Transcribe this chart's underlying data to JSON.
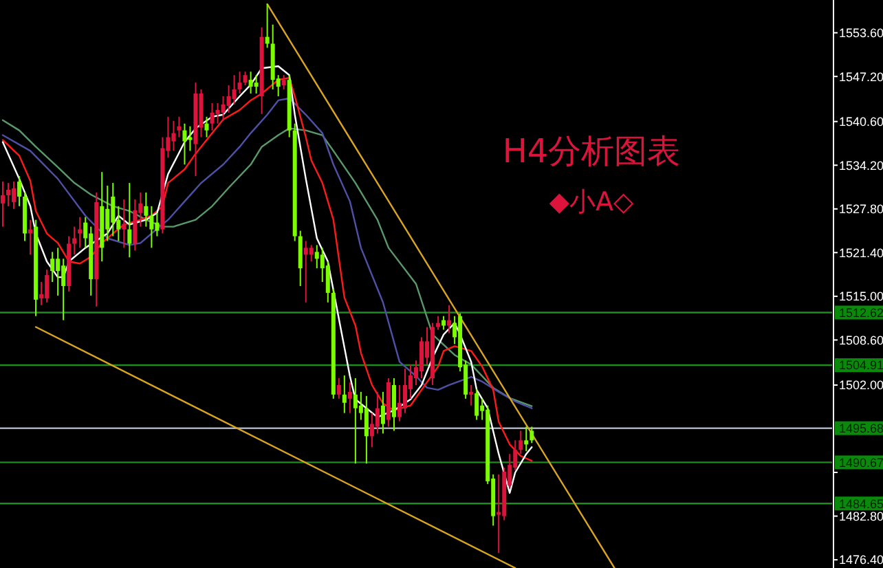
{
  "chart_data": {
    "type": "candlestick",
    "annotations": [
      "H4分析图表",
      "◆小A◇"
    ],
    "tick_labels": "y",
    "ylim": [
      1475.2,
      1558.4
    ],
    "yticks": [
      {
        "value": 1553.6,
        "label": "1553.60"
      },
      {
        "value": 1547.2,
        "label": "1547.20"
      },
      {
        "value": 1540.6,
        "label": "1540.60"
      },
      {
        "value": 1534.2,
        "label": "1534.20"
      },
      {
        "value": 1527.8,
        "label": "1527.80"
      },
      {
        "value": 1521.4,
        "label": "1521.40"
      },
      {
        "value": 1515.0,
        "label": "1515.00"
      },
      {
        "value": 1508.6,
        "label": "1508.60"
      },
      {
        "value": 1502.0,
        "label": "1502.00"
      },
      {
        "value": 1489.2,
        "label": null
      },
      {
        "value": 1482.8,
        "label": "1482.80"
      },
      {
        "value": 1476.4,
        "label": "1476.40"
      }
    ],
    "categories": [
      null,
      null,
      null,
      null,
      null,
      null,
      null,
      null,
      null,
      null,
      null,
      null,
      null,
      null,
      null,
      null,
      null,
      null,
      null,
      null,
      null,
      null,
      null,
      null,
      null,
      null,
      null,
      null,
      null,
      null,
      null,
      null,
      null,
      null,
      null,
      null,
      null,
      null,
      null,
      null,
      null,
      null,
      null,
      null,
      null,
      null,
      null,
      null,
      null,
      null,
      null,
      null,
      null,
      null,
      null,
      null,
      null,
      null,
      null,
      null,
      null,
      null,
      null,
      null,
      null,
      null,
      null,
      null,
      null,
      null,
      null,
      null,
      null,
      null,
      null,
      null,
      null,
      null,
      null,
      null,
      null,
      null,
      null,
      null,
      null,
      null,
      null,
      null,
      null,
      null,
      null,
      null,
      null,
      null,
      null,
      null,
      null,
      null,
      null,
      null,
      null,
      null,
      null,
      null,
      null,
      null,
      null,
      null,
      null,
      null,
      null,
      null,
      null,
      null,
      null,
      null,
      null,
      null,
      null,
      null,
      null,
      null,
      null,
      null,
      null,
      null,
      null,
      null,
      null,
      null,
      null,
      null,
      null,
      null,
      null,
      null,
      null,
      null,
      null,
      null,
      null,
      null,
      null,
      null,
      null,
      null,
      null,
      null,
      null,
      null,
      null
    ],
    "ohlc": [
      [
        1528.6,
        1531.8,
        1525.2,
        1529.8
      ],
      [
        1529.8,
        1531.6,
        1528.2,
        1530.6
      ],
      [
        1528.8,
        1531.8,
        1527.8,
        1530.8
      ],
      [
        1531.8,
        1532.6,
        1528.2,
        1529.6
      ],
      [
        1529.6,
        1530.2,
        1523.1,
        1524.2
      ],
      [
        1524.2,
        1526.2,
        1521.1,
        1524.8
      ],
      [
        1525.2,
        1526.2,
        1512.1,
        1514.5
      ],
      [
        1514.7,
        1517.1,
        1513.7,
        1515.3
      ],
      [
        1514.7,
        1518.9,
        1514.1,
        1518.1
      ],
      [
        1520.5,
        1521.5,
        1517.1,
        1518.7
      ],
      [
        1520.5,
        1522.1,
        1515.1,
        1518.7
      ],
      [
        1519.5,
        1520.5,
        1511.5,
        1516.5
      ],
      [
        1516.5,
        1523.8,
        1515.7,
        1522.7
      ],
      [
        1522.7,
        1525.2,
        1521.1,
        1523.5
      ],
      [
        1524.2,
        1526.6,
        1522.1,
        1524.8
      ],
      [
        1525.8,
        1526.6,
        1522.1,
        1523.5
      ],
      [
        1524.2,
        1525.2,
        1515.1,
        1517.5
      ],
      [
        1517.5,
        1530.2,
        1513.5,
        1528.8
      ],
      [
        1528.2,
        1533.2,
        1520.1,
        1522.1
      ],
      [
        1527.8,
        1531.2,
        1523.1,
        1524.8
      ],
      [
        1529.6,
        1531.6,
        1523.8,
        1525.8
      ],
      [
        1526.2,
        1528.2,
        1523.1,
        1524.8
      ],
      [
        1524.8,
        1529.2,
        1522.1,
        1525.6
      ],
      [
        1524.8,
        1531.6,
        1520.7,
        1522.7
      ],
      [
        1522.7,
        1529.2,
        1521.7,
        1527.6
      ],
      [
        1527.2,
        1530.2,
        1525.2,
        1528.6
      ],
      [
        1528.2,
        1530.2,
        1525.2,
        1526.8
      ],
      [
        1526.8,
        1528.2,
        1522.1,
        1524.8
      ],
      [
        1525.8,
        1527.2,
        1523.8,
        1524.6
      ],
      [
        1524.8,
        1538.3,
        1524.2,
        1536.7
      ],
      [
        1536.3,
        1541.3,
        1535.3,
        1538.3
      ],
      [
        1537.7,
        1540.7,
        1536.3,
        1538.9
      ],
      [
        1539.3,
        1541.3,
        1538.3,
        1539.9
      ],
      [
        1539.3,
        1540.3,
        1534.3,
        1537.7
      ],
      [
        1538.3,
        1539.9,
        1536.3,
        1537.9
      ],
      [
        1537.3,
        1546.3,
        1532.6,
        1544.7
      ],
      [
        1539.7,
        1545.3,
        1538.3,
        1544.7
      ],
      [
        1540.3,
        1541.3,
        1538.3,
        1539.3
      ],
      [
        1540.3,
        1543.3,
        1539.3,
        1541.9
      ],
      [
        1541.7,
        1543.3,
        1540.3,
        1542.3
      ],
      [
        1541.9,
        1544.3,
        1540.7,
        1543.1
      ],
      [
        1542.9,
        1545.9,
        1541.9,
        1544.3
      ],
      [
        1543.9,
        1547.4,
        1543.1,
        1545.3
      ],
      [
        1545.3,
        1547.9,
        1544.7,
        1546.3
      ],
      [
        1546.3,
        1547.9,
        1545.9,
        1547.4
      ],
      [
        1546.7,
        1547.9,
        1544.7,
        1545.7
      ],
      [
        1546.3,
        1547.4,
        1544.7,
        1545.7
      ],
      [
        1544.3,
        1554.4,
        1541.7,
        1553.0
      ],
      [
        1553.0,
        1557.8,
        1551.4,
        1552.0
      ],
      [
        1552.0,
        1554.8,
        1545.3,
        1546.7
      ],
      [
        1546.9,
        1547.4,
        1544.3,
        1545.7
      ],
      [
        1545.9,
        1547.4,
        1545.3,
        1546.7
      ],
      [
        1546.7,
        1547.4,
        1538.3,
        1539.3
      ],
      [
        1539.3,
        1540.3,
        1523.1,
        1523.8
      ],
      [
        1523.8,
        1524.6,
        1516.5,
        1519.1
      ],
      [
        1521.1,
        1523.1,
        1514.1,
        1522.1
      ],
      [
        1521.1,
        1522.5,
        1520.1,
        1522.1
      ],
      [
        1521.5,
        1522.5,
        1519.1,
        1520.5
      ],
      [
        1521.1,
        1522.1,
        1517.1,
        1519.1
      ],
      [
        1519.5,
        1520.1,
        1514.1,
        1515.5
      ],
      [
        1515.5,
        1516.1,
        1500.0,
        1500.6
      ],
      [
        1500.6,
        1503.0,
        1500.0,
        1502.0
      ],
      [
        1500.6,
        1503.4,
        1497.9,
        1499.4
      ],
      [
        1500.0,
        1502.4,
        1497.9,
        1501.0
      ],
      [
        1500.6,
        1503.0,
        1490.5,
        1498.6
      ],
      [
        1499.0,
        1501.0,
        1496.9,
        1497.9
      ],
      [
        1498.6,
        1500.4,
        1490.5,
        1494.5
      ],
      [
        1494.5,
        1497.9,
        1492.9,
        1496.3
      ],
      [
        1495.9,
        1501.0,
        1494.9,
        1498.6
      ],
      [
        1499.0,
        1501.0,
        1494.9,
        1496.3
      ],
      [
        1496.9,
        1503.0,
        1495.9,
        1502.4
      ],
      [
        1502.0,
        1503.0,
        1495.3,
        1497.3
      ],
      [
        1497.3,
        1502.0,
        1496.7,
        1499.4
      ],
      [
        1498.6,
        1504.4,
        1497.9,
        1502.0
      ],
      [
        1501.4,
        1505.0,
        1500.0,
        1503.4
      ],
      [
        1503.0,
        1505.6,
        1502.0,
        1504.6
      ],
      [
        1504.0,
        1509.0,
        1503.0,
        1508.4
      ],
      [
        1506.0,
        1510.5,
        1505.0,
        1508.4
      ],
      [
        1503.0,
        1511.1,
        1502.0,
        1510.5
      ],
      [
        1510.5,
        1512.1,
        1510.1,
        1511.1
      ],
      [
        1511.5,
        1512.1,
        1510.1,
        1510.7
      ],
      [
        1510.7,
        1513.7,
        1509.6,
        1511.5
      ],
      [
        1511.1,
        1512.1,
        1508.0,
        1509.0
      ],
      [
        1512.1,
        1512.5,
        1504.0,
        1504.6
      ],
      [
        1505.0,
        1505.6,
        1500.0,
        1500.6
      ],
      [
        1500.6,
        1502.0,
        1499.0,
        1501.0
      ],
      [
        1500.8,
        1501.4,
        1496.9,
        1497.5
      ],
      [
        1499.0,
        1500.0,
        1496.9,
        1498.2
      ],
      [
        1498.4,
        1499.0,
        1487.5,
        1487.9
      ],
      [
        1488.3,
        1488.9,
        1481.4,
        1482.8
      ],
      [
        1483.0,
        1488.9,
        1477.4,
        1483.4
      ],
      [
        1482.8,
        1489.9,
        1482.2,
        1489.3
      ],
      [
        1487.3,
        1491.9,
        1486.9,
        1490.3
      ],
      [
        1489.9,
        1493.9,
        1489.5,
        1492.5
      ],
      [
        1492.5,
        1495.3,
        1491.9,
        1493.9
      ],
      [
        1493.9,
        1495.9,
        1492.3,
        1493.3
      ],
      [
        1495.3,
        1495.9,
        1493.5,
        1493.9
      ],
      null,
      null,
      null,
      null,
      null,
      null,
      null,
      null,
      null,
      null,
      null,
      null,
      null,
      null,
      null,
      null,
      null,
      null,
      null,
      null,
      null,
      null,
      null,
      null,
      null,
      null,
      null,
      null,
      null,
      null,
      null,
      null,
      null,
      null,
      null,
      null,
      null,
      null,
      null,
      null,
      null,
      null,
      null,
      null,
      null,
      null,
      null,
      null,
      null,
      null,
      null,
      null,
      null,
      null
    ],
    "colors": [
      "#dc143c",
      "#dc143c",
      "#dc143c",
      "#7cfc00",
      "#7cfc00",
      "#dc143c",
      "#7cfc00",
      "#dc143c",
      "#dc143c",
      "#7cfc00",
      "#7cfc00",
      "#7cfc00",
      "#dc143c",
      "#dc143c",
      "#dc143c",
      "#7cfc00",
      "#7cfc00",
      "#dc143c",
      "#7cfc00",
      "#7cfc00",
      "#7cfc00",
      "#7cfc00",
      "#dc143c",
      "#7cfc00",
      "#dc143c",
      "#dc143c",
      "#7cfc00",
      "#7cfc00",
      "#7cfc00",
      "#dc143c",
      "#dc143c",
      "#dc143c",
      "#dc143c",
      "#7cfc00",
      "#7cfc00",
      "#dc143c",
      "#dc143c",
      "#7cfc00",
      "#dc143c",
      "#dc143c",
      "#dc143c",
      "#dc143c",
      "#dc143c",
      "#dc143c",
      "#dc143c",
      "#7cfc00",
      "#7cfc00",
      "#dc143c",
      "#7cfc00",
      "#7cfc00",
      "#7cfc00",
      "#dc143c",
      "#7cfc00",
      "#7cfc00",
      "#7cfc00",
      "#dc143c",
      "#dc143c",
      "#7cfc00",
      "#7cfc00",
      "#7cfc00",
      "#7cfc00",
      "#dc143c",
      "#7cfc00",
      "#dc143c",
      "#7cfc00",
      "#7cfc00",
      "#7cfc00",
      "#dc143c",
      "#dc143c",
      "#7cfc00",
      "#dc143c",
      "#7cfc00",
      "#dc143c",
      "#dc143c",
      "#dc143c",
      "#dc143c",
      "#dc143c",
      "#dc143c",
      "#dc143c",
      "#dc143c",
      "#7cfc00",
      "#dc143c",
      "#7cfc00",
      "#7cfc00",
      "#7cfc00",
      "#dc143c",
      "#7cfc00",
      "#7cfc00",
      "#7cfc00",
      "#7cfc00",
      "#dc143c",
      "#dc143c",
      "#dc143c",
      "#dc143c",
      "#dc143c",
      "#7cfc00",
      "#7cfc00",
      null,
      null,
      null,
      null,
      null,
      null,
      null,
      null,
      null,
      null,
      null,
      null,
      null,
      null,
      null,
      null,
      null,
      null,
      null,
      null,
      null,
      null,
      null,
      null,
      null,
      null,
      null,
      null,
      null,
      null,
      null,
      null,
      null,
      null,
      null,
      null,
      null,
      null,
      null,
      null,
      null,
      null,
      null,
      null,
      null,
      null,
      null,
      null,
      null,
      null,
      null,
      null,
      null,
      null
    ],
    "series": [
      {
        "type": "line",
        "color": "#5a9a6a",
        "values": [
          1540.8,
          null,
          null,
          1539.3,
          null,
          null,
          1536.9,
          null,
          null,
          null,
          1533.9,
          null,
          null,
          1531.6,
          null,
          null,
          1529.9,
          null,
          null,
          null,
          1528.2,
          null,
          null,
          1527.5,
          null,
          null,
          1526.2,
          null,
          null,
          1525.2,
          null,
          1525.2,
          null,
          null,
          null,
          1526.2,
          null,
          null,
          1528.2,
          null,
          null,
          1530.9,
          null,
          null,
          null,
          1534.3,
          null,
          1536.9,
          null,
          null,
          1538.6,
          null,
          1539.6,
          null,
          null,
          1539.3,
          null,
          null,
          1538.6,
          null,
          1536.3,
          null,
          null,
          null,
          1531.6,
          null,
          null,
          null,
          1526.2,
          null,
          1522.1,
          null,
          null,
          null,
          null,
          1516.8,
          null,
          null,
          1509.4,
          null,
          null,
          null,
          1506.4,
          null,
          null,
          1505.0,
          null,
          null,
          null,
          1501.6,
          null,
          null,
          1500.1,
          null,
          null,
          null,
          1498.9,
          null,
          null,
          null,
          null,
          null,
          null,
          null,
          null,
          null,
          null,
          null,
          null,
          null,
          null,
          null,
          null,
          null,
          null,
          null,
          null,
          null,
          null,
          null,
          null,
          null,
          null,
          null,
          null,
          null,
          null,
          null,
          null,
          null,
          null,
          null,
          null,
          null,
          null,
          null,
          null,
          null,
          null,
          null,
          null,
          null,
          null,
          null,
          null,
          null,
          null,
          null,
          null,
          null,
          null
        ]
      },
      {
        "type": "line",
        "color": "#5050a8",
        "values": [
          1538.6,
          null,
          null,
          null,
          null,
          1536.3,
          null,
          null,
          null,
          null,
          1532.2,
          null,
          null,
          null,
          null,
          1526.8,
          null,
          null,
          null,
          1523.5,
          null,
          null,
          null,
          1522.5,
          null,
          1522.8,
          null,
          1524.2,
          null,
          null,
          1526.2,
          null,
          null,
          1528.9,
          null,
          null,
          1531.6,
          null,
          null,
          null,
          1534.3,
          null,
          null,
          1536.9,
          null,
          1538.9,
          null,
          null,
          1541.6,
          null,
          1543.7,
          null,
          1544.0,
          null,
          null,
          1541.6,
          null,
          null,
          1538.9,
          null,
          1534.3,
          null,
          null,
          1528.9,
          null,
          1522.1,
          null,
          null,
          null,
          1514.1,
          null,
          null,
          1505.4,
          null,
          null,
          1503.3,
          null,
          1501.6,
          null,
          1501.3,
          null,
          1502.0,
          null,
          null,
          null,
          1503.2,
          null,
          1502.5,
          null,
          null,
          1501.0,
          null,
          null,
          1499.6,
          null,
          null,
          1498.6,
          null,
          null,
          null,
          null,
          null,
          null,
          null,
          null,
          null,
          null,
          null,
          null,
          null,
          null,
          null,
          null,
          null,
          null,
          null,
          null,
          null,
          null,
          null,
          null,
          null,
          null,
          null,
          null,
          null,
          null,
          null,
          null,
          null,
          null,
          null,
          null,
          null,
          null,
          null,
          null,
          null,
          null,
          null,
          null,
          null,
          null,
          null,
          null,
          null,
          null,
          null,
          null,
          null,
          null
        ]
      },
      {
        "type": "line",
        "color": "#ff1a1a",
        "values": [
          1537.9,
          null,
          null,
          1535.6,
          null,
          1531.9,
          1527.5,
          null,
          1524.2,
          null,
          1522.8,
          null,
          1520.1,
          null,
          1519.8,
          null,
          1520.8,
          null,
          1522.8,
          null,
          1524.2,
          null,
          1525.5,
          null,
          null,
          1526.2,
          null,
          1526.8,
          null,
          1528.2,
          1531.6,
          null,
          null,
          1533.6,
          null,
          1535.9,
          null,
          null,
          1538.9,
          null,
          1540.9,
          null,
          null,
          1542.3,
          null,
          1543.7,
          null,
          1544.7,
          null,
          null,
          1546.7,
          null,
          1547.0,
          1544.3,
          null,
          1538.3,
          1534.9,
          null,
          1531.6,
          null,
          1526.2,
          null,
          1514.8,
          null,
          1510.7,
          1506.7,
          null,
          1502.0,
          null,
          1499.3,
          null,
          1498.3,
          null,
          null,
          1499.0,
          null,
          1501.3,
          null,
          null,
          1504.7,
          1507.0,
          null,
          1507.7,
          null,
          null,
          1507.0,
          null,
          1504.7,
          null,
          1501.3,
          1496.6,
          null,
          1493.3,
          null,
          1491.6,
          null,
          1490.9,
          null,
          null,
          null,
          null,
          null,
          null,
          null,
          null,
          null,
          null,
          null,
          null,
          null,
          null,
          null,
          null,
          null,
          null,
          null,
          null,
          null,
          null,
          null,
          null,
          null,
          null,
          null,
          null,
          null,
          null,
          null,
          null,
          null,
          null,
          null,
          null,
          null,
          null,
          null,
          null,
          null,
          null,
          null,
          null,
          null,
          null,
          null,
          null,
          null,
          null,
          null,
          null,
          null,
          null
        ]
      },
      {
        "type": "line",
        "color": "#ffffff",
        "values": [
          1537.6,
          null,
          null,
          1532.2,
          null,
          1528.2,
          1524.2,
          null,
          1520.1,
          null,
          1517.8,
          1517.8,
          1520.1,
          null,
          null,
          1522.1,
          null,
          null,
          null,
          1524.2,
          null,
          1526.8,
          null,
          1525.5,
          null,
          null,
          1526.2,
          null,
          1527.2,
          null,
          1532.9,
          null,
          null,
          1537.6,
          null,
          1539.6,
          null,
          null,
          1541.3,
          null,
          1541.6,
          null,
          null,
          1544.3,
          null,
          1546.0,
          null,
          1548.4,
          null,
          null,
          1548.7,
          null,
          1547.4,
          1541.6,
          null,
          1532.2,
          null,
          1523.5,
          null,
          1520.1,
          null,
          null,
          null,
          1503.3,
          1499.9,
          null,
          null,
          null,
          1497.3,
          null,
          null,
          1498.3,
          null,
          null,
          1499.9,
          null,
          1502.0,
          null,
          1506.0,
          null,
          1509.4,
          null,
          1511.1,
          1509.4,
          null,
          1505.4,
          1501.3,
          null,
          1498.6,
          null,
          1491.9,
          null,
          1486.2,
          1489.2,
          null,
          1491.9,
          1492.9,
          null,
          null,
          null,
          null,
          null,
          null,
          null,
          null,
          null,
          null,
          null,
          null,
          null,
          null,
          null,
          null,
          null,
          null,
          null,
          null,
          null,
          null,
          null,
          null,
          null,
          null,
          null,
          null,
          null,
          null,
          null,
          null,
          null,
          null,
          null,
          null,
          null,
          null,
          null,
          null,
          null,
          null,
          null,
          null,
          null,
          null,
          null,
          null,
          null,
          null,
          null,
          null,
          null,
          null
        ]
      },
      {
        "type": "line",
        "color": "#daa520",
        "values": [
          null,
          null,
          null,
          null,
          null,
          null,
          null,
          null,
          null,
          null,
          null,
          null,
          null,
          null,
          null,
          null,
          null,
          null,
          null,
          null,
          null,
          null,
          null,
          null,
          null,
          null,
          null,
          null,
          null,
          null,
          null,
          null,
          null,
          null,
          null,
          null,
          null,
          null,
          null,
          null,
          null,
          null,
          null,
          null,
          null,
          null,
          null,
          null,
          1557.8,
          null,
          null,
          null,
          null,
          null,
          null,
          null,
          null,
          null,
          null,
          null,
          null,
          null,
          null,
          null,
          null,
          null,
          null,
          null,
          null,
          null,
          null,
          null,
          null,
          null,
          null,
          null,
          null,
          null,
          null,
          null,
          null,
          null,
          null,
          null,
          null,
          null,
          null,
          null,
          null,
          null,
          null,
          null,
          null,
          null,
          null,
          null,
          null,
          null,
          null,
          null,
          null,
          null,
          null,
          null,
          null,
          null,
          null,
          null,
          null,
          null,
          null,
          1475.2,
          null,
          null,
          null,
          null,
          null,
          null,
          null,
          null,
          null,
          null,
          null,
          null,
          null,
          null,
          null,
          null,
          null,
          null,
          null,
          null,
          null,
          null,
          null,
          null,
          null,
          null,
          null,
          null,
          null,
          null,
          null,
          null,
          null,
          null,
          null,
          null,
          null,
          null,
          null
        ]
      },
      {
        "type": "line",
        "color": "#daa520",
        "values": [
          null,
          null,
          null,
          null,
          null,
          null,
          1510.5,
          null,
          null,
          null,
          null,
          null,
          null,
          null,
          null,
          null,
          null,
          null,
          null,
          null,
          null,
          null,
          null,
          null,
          null,
          null,
          null,
          null,
          null,
          null,
          null,
          null,
          null,
          null,
          null,
          null,
          null,
          null,
          null,
          null,
          null,
          null,
          null,
          null,
          null,
          null,
          null,
          null,
          null,
          null,
          null,
          null,
          null,
          null,
          null,
          null,
          null,
          null,
          null,
          null,
          null,
          null,
          null,
          null,
          null,
          null,
          null,
          null,
          null,
          null,
          null,
          null,
          null,
          null,
          null,
          null,
          null,
          null,
          null,
          null,
          null,
          null,
          null,
          null,
          null,
          null,
          null,
          null,
          null,
          null,
          null,
          null,
          null,
          1475.2,
          null,
          null,
          null,
          null,
          null,
          null,
          null,
          null,
          null,
          null,
          null,
          null,
          null,
          null,
          null,
          null,
          null,
          null,
          null,
          null,
          null,
          null,
          null,
          null,
          null,
          null,
          null,
          null,
          null,
          null,
          null,
          null,
          null,
          null,
          null,
          null,
          null,
          null,
          null,
          null,
          null,
          null,
          null,
          null,
          null,
          null,
          null,
          null,
          null,
          null,
          null,
          null,
          null,
          null,
          null,
          null,
          null
        ]
      }
    ],
    "ref_lines": [
      {
        "axis": "y",
        "value": 1512.62,
        "label": "1512.62",
        "color": "#1e8c1e"
      },
      {
        "axis": "y",
        "value": 1504.91,
        "label": "1504.91",
        "color": "#1e8c1e"
      },
      {
        "axis": "y",
        "value": 1495.68,
        "label": "1495.68",
        "color": "#a8b0c0"
      },
      {
        "axis": "y",
        "value": 1490.67,
        "label": "1490.67",
        "color": "#1e8c1e"
      },
      {
        "axis": "y",
        "value": 1484.65,
        "label": "1484.65",
        "color": "#1e8c1e"
      }
    ]
  }
}
